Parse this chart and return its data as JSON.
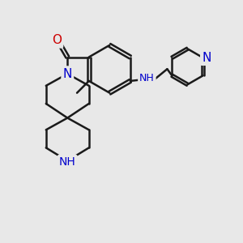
{
  "background_color": "#e8e8e8",
  "bond_color": "#1a1a1a",
  "bond_width": 1.8,
  "atom_colors": {
    "N": "#0000cc",
    "O": "#cc0000",
    "NH": "#0000cc"
  },
  "figsize": [
    3.0,
    3.0
  ],
  "dpi": 100
}
